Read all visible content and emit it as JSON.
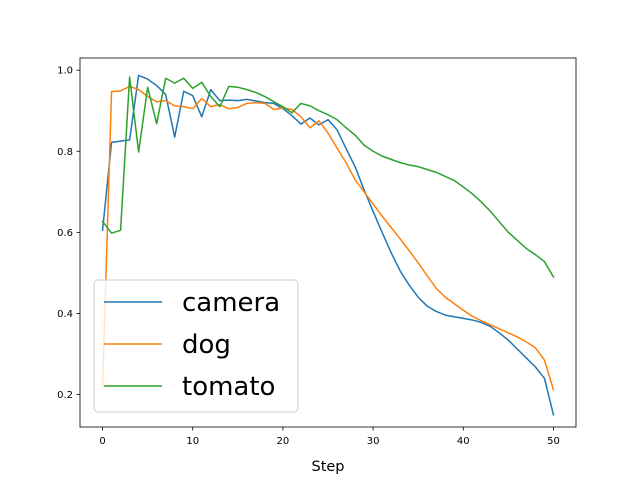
{
  "chart_data": {
    "type": "line",
    "title": "",
    "xlabel": "Step",
    "ylabel": "",
    "xlim": [
      -2.5,
      52.5
    ],
    "ylim": [
      0.12,
      1.03
    ],
    "xticks": [
      0,
      10,
      20,
      30,
      40,
      50
    ],
    "yticks": [
      0.2,
      0.4,
      0.6,
      0.8,
      1.0
    ],
    "xtick_labels": [
      "0",
      "10",
      "20",
      "30",
      "40",
      "50"
    ],
    "ytick_labels": [
      "0.2",
      "0.4",
      "0.6",
      "0.8",
      "1.0"
    ],
    "grid": false,
    "legend_position": "lower-left",
    "x": [
      0,
      1,
      2,
      3,
      4,
      5,
      6,
      7,
      8,
      9,
      10,
      11,
      12,
      13,
      14,
      15,
      16,
      17,
      18,
      19,
      20,
      21,
      22,
      23,
      24,
      25,
      26,
      27,
      28,
      29,
      30,
      31,
      32,
      33,
      34,
      35,
      36,
      37,
      38,
      39,
      40,
      41,
      42,
      43,
      44,
      45,
      46,
      47,
      48,
      49,
      50
    ],
    "series": [
      {
        "name": "camera",
        "color": "#1f77b4",
        "values": [
          0.605,
          0.822,
          0.825,
          0.828,
          0.987,
          0.978,
          0.962,
          0.94,
          0.835,
          0.948,
          0.937,
          0.885,
          0.952,
          0.925,
          0.926,
          0.925,
          0.928,
          0.924,
          0.92,
          0.918,
          0.905,
          0.888,
          0.867,
          0.882,
          0.865,
          0.878,
          0.853,
          0.807,
          0.762,
          0.705,
          0.652,
          0.6,
          0.55,
          0.505,
          0.47,
          0.44,
          0.418,
          0.405,
          0.396,
          0.392,
          0.388,
          0.384,
          0.378,
          0.368,
          0.352,
          0.334,
          0.312,
          0.29,
          0.268,
          0.24,
          0.15
        ]
      },
      {
        "name": "dog",
        "color": "#ff7f0e",
        "values": [
          0.217,
          0.947,
          0.949,
          0.96,
          0.952,
          0.935,
          0.922,
          0.925,
          0.912,
          0.91,
          0.905,
          0.93,
          0.91,
          0.915,
          0.905,
          0.908,
          0.918,
          0.92,
          0.918,
          0.903,
          0.907,
          0.903,
          0.885,
          0.858,
          0.875,
          0.845,
          0.808,
          0.772,
          0.73,
          0.7,
          0.67,
          0.64,
          0.612,
          0.584,
          0.555,
          0.525,
          0.493,
          0.462,
          0.44,
          0.424,
          0.408,
          0.393,
          0.382,
          0.372,
          0.362,
          0.352,
          0.342,
          0.33,
          0.315,
          0.285,
          0.212
        ]
      },
      {
        "name": "tomato",
        "color": "#2ca02c",
        "values": [
          0.627,
          0.598,
          0.605,
          0.983,
          0.798,
          0.958,
          0.868,
          0.98,
          0.968,
          0.98,
          0.955,
          0.97,
          0.935,
          0.91,
          0.96,
          0.958,
          0.952,
          0.945,
          0.935,
          0.922,
          0.91,
          0.895,
          0.918,
          0.912,
          0.9,
          0.89,
          0.878,
          0.858,
          0.84,
          0.815,
          0.8,
          0.788,
          0.78,
          0.772,
          0.766,
          0.762,
          0.755,
          0.748,
          0.738,
          0.728,
          0.712,
          0.695,
          0.675,
          0.652,
          0.626,
          0.6,
          0.58,
          0.56,
          0.545,
          0.528,
          0.49
        ]
      }
    ]
  }
}
